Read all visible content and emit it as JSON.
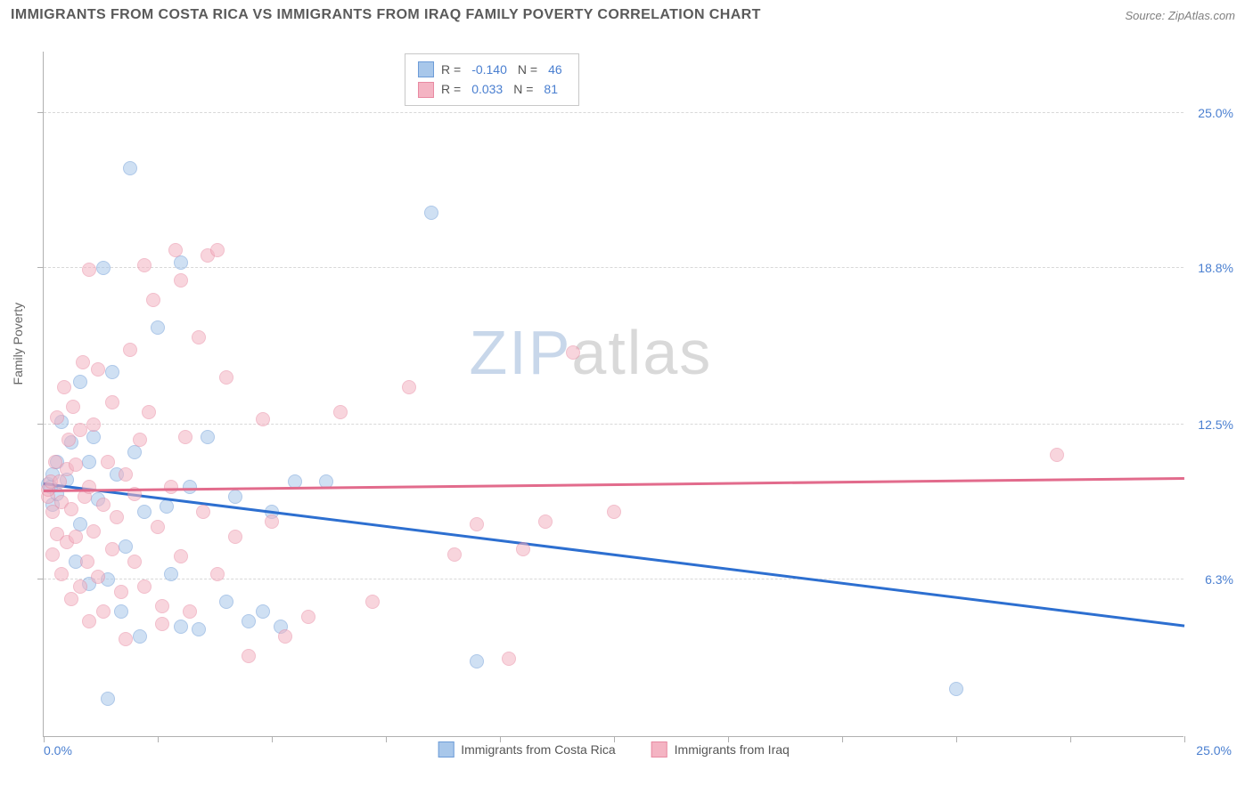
{
  "title": "IMMIGRANTS FROM COSTA RICA VS IMMIGRANTS FROM IRAQ FAMILY POVERTY CORRELATION CHART",
  "source": "Source: ZipAtlas.com",
  "chart": {
    "type": "scatter",
    "background_color": "#ffffff",
    "grid_color": "#d8d8d8",
    "border_color": "#b0b0b0",
    "x_axis": {
      "min": 0,
      "max": 25,
      "tick_step": 2.5,
      "label_min": "0.0%",
      "label_max": "25.0%",
      "label_color": "#4a7fd0"
    },
    "y_axis": {
      "title": "Family Poverty",
      "title_color": "#666666",
      "min": 0,
      "max": 27.5,
      "ticks": [
        6.3,
        12.5,
        18.8,
        25.0
      ],
      "tick_labels": [
        "6.3%",
        "12.5%",
        "18.8%",
        "25.0%"
      ],
      "label_color": "#4a7fd0"
    },
    "marker_size": 16,
    "series": [
      {
        "name": "Immigrants from Costa Rica",
        "fill_color": "#a8c7ea",
        "stroke_color": "#6d9cd8",
        "fill_opacity": 0.55,
        "R": "-0.140",
        "N": "46",
        "trend": {
          "color": "#2d6fd0",
          "y_at_xmin": 10.1,
          "y_at_xmax": 4.4
        },
        "points": [
          [
            0.1,
            10.1
          ],
          [
            0.15,
            10.0
          ],
          [
            0.2,
            10.5
          ],
          [
            0.2,
            9.3
          ],
          [
            0.3,
            11.0
          ],
          [
            0.3,
            9.7
          ],
          [
            0.4,
            12.6
          ],
          [
            0.5,
            10.3
          ],
          [
            0.6,
            11.8
          ],
          [
            0.7,
            7.0
          ],
          [
            0.8,
            14.2
          ],
          [
            0.8,
            8.5
          ],
          [
            1.0,
            11.0
          ],
          [
            1.0,
            6.1
          ],
          [
            1.1,
            12.0
          ],
          [
            1.2,
            9.5
          ],
          [
            1.3,
            18.8
          ],
          [
            1.4,
            6.3
          ],
          [
            1.5,
            14.6
          ],
          [
            1.6,
            10.5
          ],
          [
            1.7,
            5.0
          ],
          [
            1.8,
            7.6
          ],
          [
            1.9,
            22.8
          ],
          [
            2.0,
            11.4
          ],
          [
            2.1,
            4.0
          ],
          [
            2.2,
            9.0
          ],
          [
            2.5,
            16.4
          ],
          [
            2.7,
            9.2
          ],
          [
            2.8,
            6.5
          ],
          [
            3.0,
            19.0
          ],
          [
            3.2,
            10.0
          ],
          [
            3.4,
            4.3
          ],
          [
            3.6,
            12.0
          ],
          [
            4.0,
            5.4
          ],
          [
            4.2,
            9.6
          ],
          [
            4.5,
            4.6
          ],
          [
            4.8,
            5.0
          ],
          [
            5.0,
            9.0
          ],
          [
            5.2,
            4.4
          ],
          [
            5.5,
            10.2
          ],
          [
            6.2,
            10.2
          ],
          [
            8.5,
            21.0
          ],
          [
            9.5,
            3.0
          ],
          [
            1.4,
            1.5
          ],
          [
            20.0,
            1.9
          ],
          [
            3.0,
            4.4
          ]
        ]
      },
      {
        "name": "Immigrants from Iraq",
        "fill_color": "#f4b4c3",
        "stroke_color": "#e88aa2",
        "fill_opacity": 0.55,
        "R": "0.033",
        "N": "81",
        "trend": {
          "color": "#e26b8c",
          "y_at_xmin": 9.8,
          "y_at_xmax": 10.3
        },
        "points": [
          [
            0.1,
            9.6
          ],
          [
            0.1,
            9.9
          ],
          [
            0.15,
            10.2
          ],
          [
            0.2,
            7.3
          ],
          [
            0.2,
            9.0
          ],
          [
            0.25,
            11.0
          ],
          [
            0.3,
            8.1
          ],
          [
            0.3,
            12.8
          ],
          [
            0.35,
            10.2
          ],
          [
            0.4,
            6.5
          ],
          [
            0.4,
            9.4
          ],
          [
            0.45,
            14.0
          ],
          [
            0.5,
            7.8
          ],
          [
            0.5,
            10.7
          ],
          [
            0.55,
            11.9
          ],
          [
            0.6,
            5.5
          ],
          [
            0.6,
            9.1
          ],
          [
            0.65,
            13.2
          ],
          [
            0.7,
            8.0
          ],
          [
            0.7,
            10.9
          ],
          [
            0.8,
            6.0
          ],
          [
            0.8,
            12.3
          ],
          [
            0.85,
            15.0
          ],
          [
            0.9,
            9.6
          ],
          [
            0.95,
            7.0
          ],
          [
            1.0,
            10.0
          ],
          [
            1.0,
            4.6
          ],
          [
            1.1,
            8.2
          ],
          [
            1.1,
            12.5
          ],
          [
            1.2,
            6.4
          ],
          [
            1.2,
            14.7
          ],
          [
            1.3,
            9.3
          ],
          [
            1.3,
            5.0
          ],
          [
            1.4,
            11.0
          ],
          [
            1.5,
            7.5
          ],
          [
            1.5,
            13.4
          ],
          [
            1.6,
            8.8
          ],
          [
            1.7,
            5.8
          ],
          [
            1.8,
            10.5
          ],
          [
            1.8,
            3.9
          ],
          [
            1.9,
            15.5
          ],
          [
            2.0,
            7.0
          ],
          [
            2.0,
            9.7
          ],
          [
            2.1,
            11.9
          ],
          [
            2.2,
            6.0
          ],
          [
            2.3,
            13.0
          ],
          [
            2.4,
            17.5
          ],
          [
            2.5,
            8.4
          ],
          [
            2.6,
            4.5
          ],
          [
            2.8,
            10.0
          ],
          [
            2.9,
            19.5
          ],
          [
            3.0,
            7.2
          ],
          [
            3.1,
            12.0
          ],
          [
            3.2,
            5.0
          ],
          [
            3.4,
            16.0
          ],
          [
            3.5,
            9.0
          ],
          [
            3.6,
            19.3
          ],
          [
            3.8,
            6.5
          ],
          [
            4.0,
            14.4
          ],
          [
            4.2,
            8.0
          ],
          [
            4.5,
            3.2
          ],
          [
            4.8,
            12.7
          ],
          [
            5.0,
            8.6
          ],
          [
            5.3,
            4.0
          ],
          [
            5.8,
            4.8
          ],
          [
            6.5,
            13.0
          ],
          [
            7.2,
            5.4
          ],
          [
            8.0,
            14.0
          ],
          [
            9.0,
            7.3
          ],
          [
            9.5,
            8.5
          ],
          [
            10.2,
            3.1
          ],
          [
            10.5,
            7.5
          ],
          [
            11.0,
            8.6
          ],
          [
            11.6,
            15.4
          ],
          [
            12.5,
            9.0
          ],
          [
            3.0,
            18.3
          ],
          [
            3.8,
            19.5
          ],
          [
            1.0,
            18.7
          ],
          [
            22.2,
            11.3
          ],
          [
            2.2,
            18.9
          ],
          [
            2.6,
            5.2
          ]
        ]
      }
    ],
    "legend_box": {
      "bg": "#ffffff",
      "border": "#c8c8c8",
      "label_R": "R =",
      "label_N": "N ="
    },
    "watermark": {
      "text_a": "ZIP",
      "text_b": "atlas",
      "color_a": "#c8d7ea",
      "color_b": "#d9d9d9",
      "fontsize": 70
    }
  }
}
